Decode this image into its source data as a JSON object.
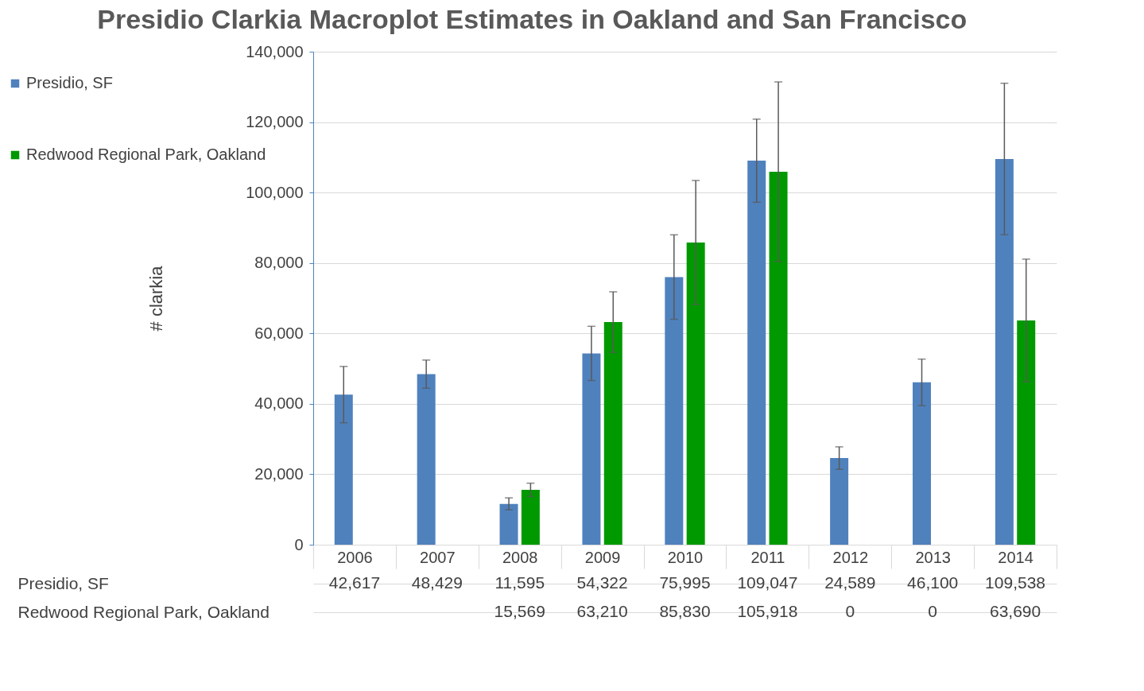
{
  "chart_data": {
    "type": "bar",
    "title": "Presidio Clarkia Macroplot Estimates in Oakland and San Francisco",
    "ylabel": "# clarkia",
    "categories": [
      "2006",
      "2007",
      "2008",
      "2009",
      "2010",
      "2011",
      "2012",
      "2013",
      "2014"
    ],
    "series": [
      {
        "name": "Presidio, SF",
        "color": "#4f81bd",
        "values": [
          42617,
          48429,
          11595,
          54322,
          75995,
          109047,
          24589,
          46100,
          109538
        ],
        "value_labels": [
          "42,617",
          "48,429",
          "11,595",
          "54,322",
          "75,995",
          "109,047",
          "24,589",
          "46,100",
          "109,538"
        ],
        "errors": [
          8000,
          4000,
          1700,
          7700,
          12000,
          11800,
          3200,
          6600,
          21500
        ]
      },
      {
        "name": "Redwood Regional Park, Oakland",
        "color": "#009900",
        "values": [
          null,
          null,
          15569,
          63210,
          85830,
          105918,
          0,
          0,
          63690
        ],
        "value_labels": [
          null,
          null,
          "15,569",
          "63,210",
          "85,830",
          "105,918",
          "0",
          "0",
          "63,690"
        ],
        "errors": [
          null,
          null,
          1900,
          8600,
          17600,
          25500,
          null,
          null,
          17400
        ]
      }
    ],
    "ylim": [
      0,
      140000
    ],
    "yticks": [
      {
        "value": 0,
        "label": "0"
      },
      {
        "value": 20000,
        "label": "20,000"
      },
      {
        "value": 40000,
        "label": "40,000"
      },
      {
        "value": 60000,
        "label": "60,000"
      },
      {
        "value": 80000,
        "label": "80,000"
      },
      {
        "value": 100000,
        "label": "100,000"
      },
      {
        "value": 120000,
        "label": "120,000"
      },
      {
        "value": 140000,
        "label": "140,000"
      }
    ],
    "grid": "y",
    "legend": "left"
  }
}
